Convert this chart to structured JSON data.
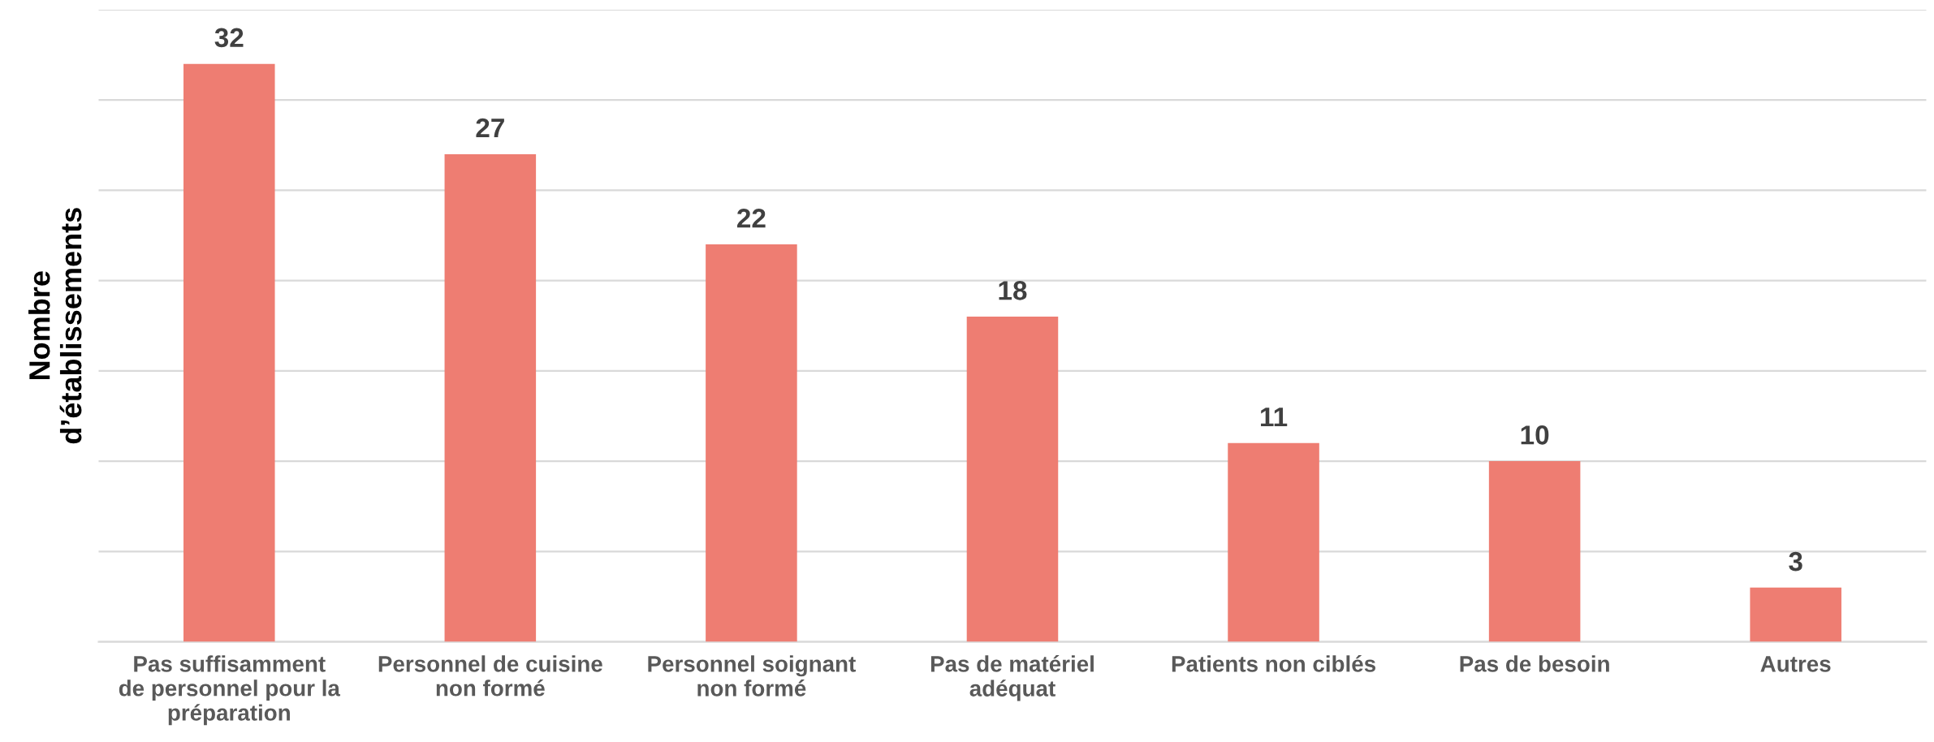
{
  "chart_data": {
    "type": "bar",
    "ylabel": "Nombre\nd’établissements",
    "categories": [
      "Pas suffisamment\nde personnel pour la\npréparation",
      "Personnel de cuisine\nnon formé",
      "Personnel soignant\nnon formé",
      "Pas de matériel\nadéquat",
      "Patients non ciblés",
      "Pas de besoin",
      "Autres"
    ],
    "values": [
      32,
      27,
      22,
      18,
      11,
      10,
      3
    ],
    "color": "#ee7d72",
    "ylim": [
      0,
      35
    ],
    "yticks": [
      {
        "value": 0,
        "label": null
      },
      {
        "value": 5,
        "label": null
      },
      {
        "value": 10,
        "label": null
      },
      {
        "value": 15,
        "label": null
      },
      {
        "value": 20,
        "label": null
      },
      {
        "value": 25,
        "label": null
      },
      {
        "value": 30,
        "label": null
      },
      {
        "value": 35,
        "label": null
      }
    ],
    "tick_labels": "x",
    "grid": "y",
    "data_labels": true
  }
}
